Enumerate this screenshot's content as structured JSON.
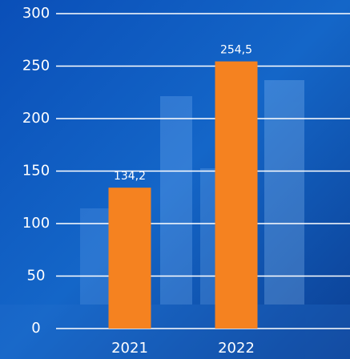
{
  "chart_data": {
    "type": "bar",
    "categories": [
      "2021",
      "2022"
    ],
    "values": [
      134.2,
      254.5
    ],
    "value_labels": [
      "134,2",
      "254,5"
    ],
    "color": "#f58220",
    "ylim": [
      0,
      300
    ],
    "yticks": [
      0,
      50,
      100,
      150,
      200,
      250,
      300
    ],
    "grid": true
  }
}
